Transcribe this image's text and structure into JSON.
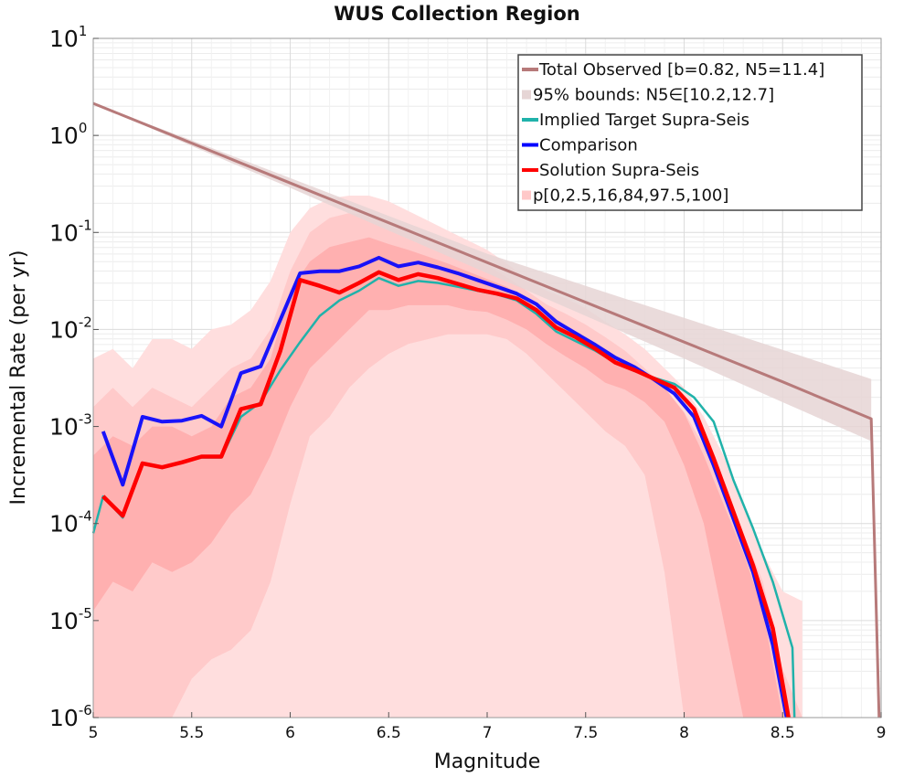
{
  "chart_data": {
    "type": "line",
    "title": "WUS Collection Region",
    "xlabel": "Magnitude",
    "ylabel": "Incremental Rate (per yr)",
    "xlim": [
      5,
      9
    ],
    "ylim_log10": [
      -6,
      1
    ],
    "x_ticks": [
      {
        "value": 5,
        "label": "5"
      },
      {
        "value": 5.5,
        "label": "5.5"
      },
      {
        "value": 6,
        "label": "6"
      },
      {
        "value": 6.5,
        "label": "6.5"
      },
      {
        "value": 7,
        "label": "7"
      },
      {
        "value": 7.5,
        "label": "7.5"
      },
      {
        "value": 8,
        "label": "8"
      },
      {
        "value": 8.5,
        "label": "8.5"
      },
      {
        "value": 9,
        "label": "9"
      }
    ],
    "y_ticks": [
      {
        "exp": 1,
        "base": "10",
        "sup": "1"
      },
      {
        "exp": 0,
        "base": "10",
        "sup": "0"
      },
      {
        "exp": -1,
        "base": "10",
        "sup": "-1"
      },
      {
        "exp": -2,
        "base": "10",
        "sup": "-2"
      },
      {
        "exp": -3,
        "base": "10",
        "sup": "-3"
      },
      {
        "exp": -4,
        "base": "10",
        "sup": "-4"
      },
      {
        "exp": -5,
        "base": "10",
        "sup": "-5"
      },
      {
        "exp": -6,
        "base": "10",
        "sup": "-6"
      }
    ],
    "legend": {
      "position": "top-right",
      "entries": [
        {
          "label": "Total Observed [b=0.82, N5=11.4]",
          "color": "#b77a7a",
          "kind": "line"
        },
        {
          "label": "95% bounds: N5∈[10.2,12.7]",
          "color": "#e6d5d5",
          "kind": "band"
        },
        {
          "label": "Implied Target Supra-Seis",
          "color": "#20b2aa",
          "kind": "line"
        },
        {
          "label": "Comparison",
          "color": "#0000ff",
          "kind": "line"
        },
        {
          "label": "Solution Supra-Seis",
          "color": "#ff0000",
          "kind": "line"
        },
        {
          "label": "p[0,2.5,16,84,97.5,100]",
          "color": "#ffc8c8",
          "kind": "band"
        }
      ]
    },
    "series": [
      {
        "name": "Total Observed [b=0.82, N5=11.4]",
        "color": "#b77a7a",
        "x": [
          5.0,
          5.5,
          6.0,
          6.5,
          7.0,
          7.5,
          8.0,
          8.5,
          8.95,
          8.99
        ],
        "log10_y": [
          0.33,
          -0.08,
          -0.49,
          -0.9,
          -1.31,
          -1.72,
          -2.13,
          -2.54,
          -2.92,
          -6.2
        ]
      },
      {
        "name": "Implied Target Supra-Seis",
        "color": "#20b2aa",
        "x": [
          5.0,
          5.05,
          5.15,
          5.25,
          5.35,
          5.45,
          5.55,
          5.65,
          5.75,
          5.85,
          5.95,
          6.05,
          6.15,
          6.25,
          6.35,
          6.45,
          6.55,
          6.65,
          6.75,
          6.85,
          6.95,
          7.05,
          7.15,
          7.25,
          7.35,
          7.45,
          7.55,
          7.65,
          7.75,
          7.85,
          7.95,
          8.05,
          8.15,
          8.25,
          8.35,
          8.45,
          8.55,
          8.56
        ],
        "log10_y": [
          -4.1,
          -3.72,
          -3.94,
          -3.38,
          -3.42,
          -3.37,
          -3.32,
          -3.32,
          -2.9,
          -2.75,
          -2.42,
          -2.13,
          -1.86,
          -1.7,
          -1.6,
          -1.47,
          -1.55,
          -1.5,
          -1.52,
          -1.56,
          -1.6,
          -1.64,
          -1.7,
          -1.84,
          -2.02,
          -2.12,
          -2.22,
          -2.34,
          -2.43,
          -2.5,
          -2.56,
          -2.7,
          -2.95,
          -3.55,
          -4.05,
          -4.6,
          -5.28,
          -6.2
        ]
      },
      {
        "name": "Comparison",
        "color": "#0000ff",
        "x": [
          5.05,
          5.15,
          5.25,
          5.35,
          5.45,
          5.55,
          5.65,
          5.75,
          5.85,
          5.95,
          6.05,
          6.15,
          6.25,
          6.35,
          6.45,
          6.55,
          6.65,
          6.75,
          6.85,
          6.95,
          7.05,
          7.15,
          7.25,
          7.35,
          7.45,
          7.55,
          7.65,
          7.75,
          7.85,
          7.95,
          8.05,
          8.15,
          8.25,
          8.35,
          8.45,
          8.52
        ],
        "log10_y": [
          -3.05,
          -3.6,
          -2.9,
          -2.95,
          -2.94,
          -2.89,
          -3.0,
          -2.45,
          -2.38,
          -1.9,
          -1.42,
          -1.4,
          -1.4,
          -1.35,
          -1.26,
          -1.35,
          -1.31,
          -1.36,
          -1.42,
          -1.49,
          -1.56,
          -1.63,
          -1.74,
          -1.92,
          -2.04,
          -2.16,
          -2.29,
          -2.39,
          -2.52,
          -2.66,
          -2.9,
          -3.4,
          -3.95,
          -4.5,
          -5.25,
          -6.2
        ]
      },
      {
        "name": "Solution Supra-Seis",
        "color": "#ff0000",
        "x": [
          5.05,
          5.15,
          5.25,
          5.35,
          5.45,
          5.55,
          5.65,
          5.75,
          5.85,
          5.95,
          6.05,
          6.15,
          6.25,
          6.35,
          6.45,
          6.55,
          6.65,
          6.75,
          6.85,
          6.95,
          7.05,
          7.15,
          7.25,
          7.35,
          7.45,
          7.55,
          7.65,
          7.75,
          7.85,
          7.95,
          8.05,
          8.15,
          8.25,
          8.35,
          8.45,
          8.53
        ],
        "log10_y": [
          -3.72,
          -3.92,
          -3.38,
          -3.42,
          -3.37,
          -3.31,
          -3.31,
          -2.82,
          -2.77,
          -2.22,
          -1.49,
          -1.55,
          -1.62,
          -1.52,
          -1.41,
          -1.49,
          -1.43,
          -1.47,
          -1.53,
          -1.59,
          -1.63,
          -1.68,
          -1.8,
          -1.98,
          -2.08,
          -2.2,
          -2.34,
          -2.42,
          -2.51,
          -2.6,
          -2.82,
          -3.33,
          -3.88,
          -4.43,
          -5.08,
          -6.2
        ]
      }
    ],
    "bounds_band": {
      "name": "95% bounds: N5∈[10.2,12.7]",
      "color": "#e6d5d5",
      "x": [
        5.0,
        5.5,
        6.0,
        6.5,
        7.0,
        7.5,
        8.0,
        8.5,
        8.95
      ],
      "log10_upper": [
        0.33,
        -0.05,
        -0.44,
        -0.83,
        -1.22,
        -1.55,
        -1.88,
        -2.21,
        -2.51
      ],
      "log10_lower": [
        0.33,
        -0.11,
        -0.54,
        -0.98,
        -1.42,
        -1.86,
        -2.3,
        -2.75,
        -3.15
      ]
    },
    "percentile_bands": {
      "name": "p[0,2.5,16,84,97.5,100]",
      "x": [
        5.0,
        5.1,
        5.2,
        5.3,
        5.4,
        5.5,
        5.6,
        5.7,
        5.8,
        5.9,
        6.0,
        6.1,
        6.2,
        6.3,
        6.4,
        6.5,
        6.6,
        6.7,
        6.8,
        6.9,
        7.0,
        7.1,
        7.2,
        7.3,
        7.4,
        7.5,
        7.6,
        7.7,
        7.8,
        7.9,
        8.0,
        8.1,
        8.2,
        8.3,
        8.4,
        8.5,
        8.6
      ],
      "bands": [
        {
          "label": "p0-p100",
          "color": "#ffdede",
          "log10_upper": [
            -2.3,
            -2.2,
            -2.4,
            -2.1,
            -2.1,
            -2.2,
            -2.0,
            -1.95,
            -1.8,
            -1.5,
            -1.0,
            -0.75,
            -0.65,
            -0.62,
            -0.62,
            -0.68,
            -0.78,
            -0.88,
            -0.98,
            -1.08,
            -1.18,
            -1.32,
            -1.48,
            -1.6,
            -1.68,
            -1.78,
            -1.92,
            -2.05,
            -2.2,
            -2.4,
            -2.6,
            -2.9,
            -3.3,
            -3.8,
            -4.3,
            -4.7,
            -4.8
          ],
          "log10_lower": [
            -6.2,
            -6.2,
            -6.2,
            -6.2,
            -6.2,
            -6.2,
            -6.2,
            -6.2,
            -6.2,
            -6.2,
            -6.2,
            -6.2,
            -6.2,
            -6.2,
            -6.2,
            -6.2,
            -6.2,
            -6.2,
            -6.2,
            -6.2,
            -6.2,
            -6.2,
            -6.2,
            -6.2,
            -6.2,
            -6.2,
            -6.2,
            -6.2,
            -6.2,
            -6.2,
            -6.2,
            -6.2,
            -6.2,
            -6.2,
            -6.2,
            -6.2,
            -6.2
          ]
        },
        {
          "label": "p2.5-p97.5",
          "color": "#ffcaca",
          "log10_upper": [
            -2.8,
            -2.6,
            -2.8,
            -2.6,
            -2.7,
            -2.8,
            -2.6,
            -2.4,
            -2.3,
            -2.0,
            -1.4,
            -1.0,
            -0.85,
            -0.8,
            -0.82,
            -0.88,
            -0.96,
            -1.06,
            -1.15,
            -1.24,
            -1.34,
            -1.46,
            -1.6,
            -1.74,
            -1.84,
            -1.95,
            -2.08,
            -2.22,
            -2.4,
            -2.6,
            -2.85,
            -3.2,
            -3.6,
            -4.1,
            -4.6,
            -5.5,
            -6.0
          ],
          "log10_lower": [
            -6.2,
            -6.2,
            -6.2,
            -6.2,
            -6.2,
            -5.6,
            -5.4,
            -5.3,
            -5.1,
            -4.6,
            -3.8,
            -3.1,
            -2.9,
            -2.6,
            -2.4,
            -2.25,
            -2.15,
            -2.1,
            -2.05,
            -2.05,
            -2.05,
            -2.1,
            -2.25,
            -2.45,
            -2.65,
            -2.85,
            -3.05,
            -3.2,
            -3.5,
            -4.5,
            -6.2,
            -6.2,
            -6.2,
            -6.2,
            -6.2,
            -6.2,
            -6.2
          ]
        },
        {
          "label": "p16-p84",
          "color": "#ffb0b0",
          "log10_upper": [
            -3.3,
            -3.1,
            -3.2,
            -3.0,
            -3.0,
            -3.1,
            -3.0,
            -2.7,
            -2.6,
            -2.3,
            -1.6,
            -1.3,
            -1.15,
            -1.1,
            -1.05,
            -1.12,
            -1.18,
            -1.25,
            -1.32,
            -1.4,
            -1.48,
            -1.56,
            -1.7,
            -1.86,
            -1.98,
            -2.1,
            -2.24,
            -2.34,
            -2.46,
            -2.6,
            -2.86,
            -3.3,
            -3.8,
            -4.3,
            -4.9,
            -6.0,
            -6.2
          ],
          "log10_lower": [
            -4.9,
            -4.6,
            -4.7,
            -4.4,
            -4.5,
            -4.4,
            -4.2,
            -3.9,
            -3.7,
            -3.3,
            -2.8,
            -2.4,
            -2.2,
            -2.0,
            -1.8,
            -1.8,
            -1.75,
            -1.75,
            -1.75,
            -1.8,
            -1.82,
            -1.9,
            -2.0,
            -2.15,
            -2.28,
            -2.4,
            -2.55,
            -2.62,
            -2.75,
            -2.95,
            -3.4,
            -4.0,
            -5.0,
            -6.2,
            -6.2,
            -6.2,
            -6.2
          ]
        }
      ]
    }
  }
}
